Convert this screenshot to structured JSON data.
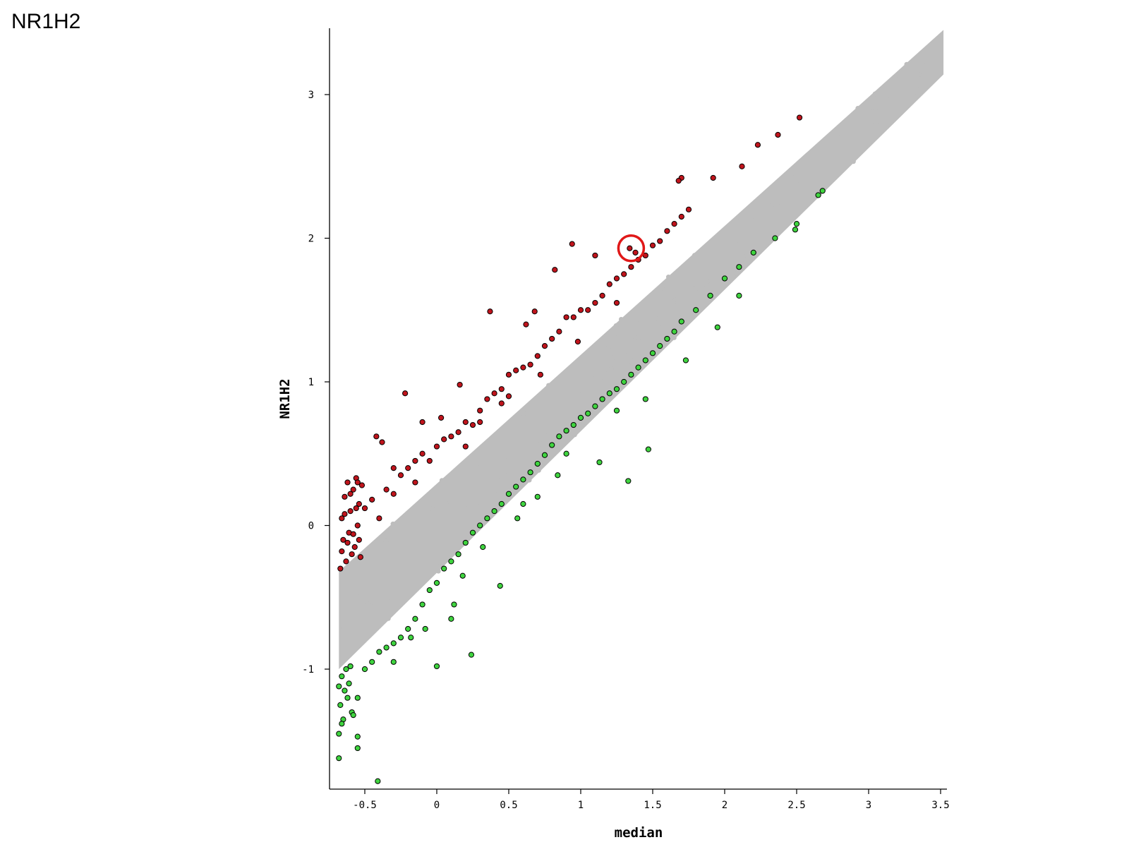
{
  "slide": {
    "title": "NR1H2"
  },
  "colors": {
    "background": "#bdbdbd",
    "up": "#c0141c",
    "down": "#3fd43f",
    "outline": "#000000",
    "highlight_ring": "#e01818"
  },
  "chart_data": {
    "type": "scatter",
    "title": "",
    "xlabel": "median",
    "ylabel": "NR1H2",
    "xlim": [
      -0.72,
      3.55
    ],
    "ylim": [
      -1.83,
      3.48
    ],
    "x_ticks": [
      -0.5,
      0,
      0.5,
      1,
      1.5,
      2,
      2.5,
      3,
      3.5
    ],
    "x_tick_labels": [
      "-0.5",
      "0",
      "0.5",
      "1",
      "1.5",
      "2",
      "2.5",
      "3",
      "3.5"
    ],
    "y_ticks": [
      -1,
      0,
      1,
      2,
      3
    ],
    "y_tick_labels": [
      "-1",
      "0",
      "1",
      "2",
      "3"
    ],
    "grid": false,
    "legend": "none",
    "background_band": {
      "color": "gray",
      "x_range": [
        -0.68,
        3.52
      ],
      "y_lower_at_xmin": -1.0,
      "y_lower_at_xmax": 3.14,
      "y_upper_at_xmin": -0.32,
      "y_upper_at_xmax": 3.45
    },
    "series": [
      {
        "color": "red",
        "points": [
          [
            -0.66,
            0.05
          ],
          [
            -0.65,
            -0.1
          ],
          [
            -0.64,
            0.2
          ],
          [
            -0.63,
            -0.25
          ],
          [
            -0.62,
            0.3
          ],
          [
            -0.61,
            -0.05
          ],
          [
            -0.6,
            0.1
          ],
          [
            -0.59,
            -0.2
          ],
          [
            -0.58,
            0.25
          ],
          [
            -0.57,
            -0.15
          ],
          [
            -0.56,
            0.33
          ],
          [
            -0.55,
            0.0
          ],
          [
            -0.54,
            0.15
          ],
          [
            -0.53,
            -0.22
          ],
          [
            -0.52,
            0.28
          ],
          [
            -0.67,
            -0.3
          ],
          [
            -0.66,
            -0.18
          ],
          [
            -0.64,
            0.08
          ],
          [
            -0.62,
            -0.12
          ],
          [
            -0.6,
            0.22
          ],
          [
            -0.58,
            -0.06
          ],
          [
            -0.56,
            0.12
          ],
          [
            -0.54,
            -0.1
          ],
          [
            -0.55,
            0.3
          ],
          [
            -0.5,
            0.12
          ],
          [
            -0.45,
            0.18
          ],
          [
            -0.4,
            0.05
          ],
          [
            -0.35,
            0.25
          ],
          [
            -0.3,
            0.22
          ],
          [
            -0.25,
            0.35
          ],
          [
            -0.2,
            0.4
          ],
          [
            -0.15,
            0.45
          ],
          [
            -0.1,
            0.5
          ],
          [
            -0.05,
            0.45
          ],
          [
            0.0,
            0.55
          ],
          [
            0.05,
            0.6
          ],
          [
            0.1,
            0.62
          ],
          [
            0.15,
            0.65
          ],
          [
            0.2,
            0.72
          ],
          [
            0.25,
            0.7
          ],
          [
            0.3,
            0.8
          ],
          [
            0.35,
            0.88
          ],
          [
            0.4,
            0.92
          ],
          [
            0.45,
            0.95
          ],
          [
            0.5,
            1.05
          ],
          [
            0.55,
            1.08
          ],
          [
            0.6,
            1.1
          ],
          [
            0.65,
            1.12
          ],
          [
            0.7,
            1.18
          ],
          [
            0.75,
            1.25
          ],
          [
            0.8,
            1.3
          ],
          [
            0.85,
            1.35
          ],
          [
            0.9,
            1.45
          ],
          [
            0.95,
            1.45
          ],
          [
            1.0,
            1.5
          ],
          [
            1.05,
            1.5
          ],
          [
            1.1,
            1.55
          ],
          [
            1.15,
            1.6
          ],
          [
            1.2,
            1.68
          ],
          [
            1.25,
            1.72
          ],
          [
            1.3,
            1.75
          ],
          [
            1.35,
            1.8
          ],
          [
            1.4,
            1.85
          ],
          [
            1.45,
            1.88
          ],
          [
            1.5,
            1.95
          ],
          [
            1.55,
            1.98
          ],
          [
            1.6,
            2.05
          ],
          [
            1.65,
            2.1
          ],
          [
            1.7,
            2.15
          ],
          [
            1.75,
            2.2
          ],
          [
            -0.42,
            0.62
          ],
          [
            -0.38,
            0.58
          ],
          [
            -0.22,
            0.92
          ],
          [
            -0.1,
            0.72
          ],
          [
            0.03,
            0.75
          ],
          [
            0.16,
            0.98
          ],
          [
            0.37,
            1.49
          ],
          [
            0.62,
            1.4
          ],
          [
            0.68,
            1.49
          ],
          [
            0.82,
            1.78
          ],
          [
            0.94,
            1.96
          ],
          [
            1.1,
            1.88
          ],
          [
            1.34,
            1.93
          ],
          [
            1.38,
            1.9
          ],
          [
            1.7,
            2.42
          ],
          [
            1.68,
            2.4
          ],
          [
            1.92,
            2.42
          ],
          [
            2.12,
            2.5
          ],
          [
            2.23,
            2.65
          ],
          [
            2.37,
            2.72
          ],
          [
            2.52,
            2.84
          ],
          [
            0.3,
            0.72
          ],
          [
            0.5,
            0.9
          ],
          [
            0.72,
            1.05
          ],
          [
            0.98,
            1.28
          ],
          [
            1.25,
            1.55
          ],
          [
            -0.3,
            0.4
          ],
          [
            -0.15,
            0.3
          ],
          [
            0.2,
            0.55
          ],
          [
            0.45,
            0.85
          ]
        ]
      },
      {
        "color": "green",
        "points": [
          [
            -0.68,
            -1.12
          ],
          [
            -0.67,
            -1.25
          ],
          [
            -0.66,
            -1.05
          ],
          [
            -0.65,
            -1.35
          ],
          [
            -0.64,
            -1.15
          ],
          [
            -0.63,
            -1.0
          ],
          [
            -0.62,
            -1.2
          ],
          [
            -0.61,
            -1.1
          ],
          [
            -0.6,
            -0.98
          ],
          [
            -0.59,
            -1.3
          ],
          [
            -0.68,
            -1.45
          ],
          [
            -0.66,
            -1.38
          ],
          [
            -0.68,
            -1.62
          ],
          [
            -0.58,
            -1.32
          ],
          [
            -0.55,
            -1.47
          ],
          [
            -0.55,
            -1.55
          ],
          [
            -0.41,
            -1.78
          ],
          [
            -0.55,
            -1.2
          ],
          [
            -0.5,
            -1.0
          ],
          [
            -0.45,
            -0.95
          ],
          [
            -0.4,
            -0.88
          ],
          [
            -0.35,
            -0.85
          ],
          [
            -0.3,
            -0.82
          ],
          [
            -0.25,
            -0.78
          ],
          [
            -0.2,
            -0.72
          ],
          [
            -0.15,
            -0.65
          ],
          [
            -0.1,
            -0.55
          ],
          [
            -0.05,
            -0.45
          ],
          [
            0.0,
            -0.4
          ],
          [
            0.05,
            -0.3
          ],
          [
            0.1,
            -0.25
          ],
          [
            0.15,
            -0.2
          ],
          [
            0.2,
            -0.12
          ],
          [
            0.25,
            -0.05
          ],
          [
            0.3,
            0.0
          ],
          [
            0.35,
            0.05
          ],
          [
            0.4,
            0.1
          ],
          [
            0.45,
            0.15
          ],
          [
            0.5,
            0.22
          ],
          [
            0.55,
            0.27
          ],
          [
            0.6,
            0.32
          ],
          [
            0.65,
            0.37
          ],
          [
            0.7,
            0.43
          ],
          [
            0.75,
            0.49
          ],
          [
            0.8,
            0.56
          ],
          [
            0.85,
            0.62
          ],
          [
            0.9,
            0.66
          ],
          [
            0.95,
            0.7
          ],
          [
            1.0,
            0.75
          ],
          [
            1.05,
            0.78
          ],
          [
            1.1,
            0.83
          ],
          [
            1.15,
            0.88
          ],
          [
            1.2,
            0.92
          ],
          [
            1.25,
            0.95
          ],
          [
            1.3,
            1.0
          ],
          [
            1.35,
            1.05
          ],
          [
            1.4,
            1.1
          ],
          [
            1.45,
            1.15
          ],
          [
            1.5,
            1.2
          ],
          [
            1.55,
            1.25
          ],
          [
            1.6,
            1.3
          ],
          [
            1.65,
            1.35
          ],
          [
            1.7,
            1.42
          ],
          [
            1.8,
            1.5
          ],
          [
            1.9,
            1.6
          ],
          [
            2.0,
            1.72
          ],
          [
            2.1,
            1.8
          ],
          [
            2.2,
            1.9
          ],
          [
            2.35,
            2.0
          ],
          [
            2.5,
            2.1
          ],
          [
            2.65,
            2.3
          ],
          [
            -0.3,
            -0.95
          ],
          [
            -0.18,
            -0.78
          ],
          [
            -0.08,
            -0.72
          ],
          [
            0.0,
            -0.98
          ],
          [
            0.1,
            -0.65
          ],
          [
            0.24,
            -0.9
          ],
          [
            0.32,
            -0.15
          ],
          [
            0.44,
            -0.42
          ],
          [
            0.56,
            0.05
          ],
          [
            0.7,
            0.2
          ],
          [
            0.84,
            0.35
          ],
          [
            1.13,
            0.44
          ],
          [
            1.33,
            0.31
          ],
          [
            1.47,
            0.53
          ],
          [
            1.45,
            0.88
          ],
          [
            1.73,
            1.15
          ],
          [
            1.95,
            1.38
          ],
          [
            2.1,
            1.6
          ],
          [
            2.49,
            2.06
          ],
          [
            2.68,
            2.33
          ],
          [
            0.12,
            -0.55
          ],
          [
            0.18,
            -0.35
          ],
          [
            0.6,
            0.15
          ],
          [
            0.9,
            0.5
          ],
          [
            1.25,
            0.8
          ]
        ]
      }
    ],
    "highlight": {
      "x": 1.35,
      "y": 1.93
    }
  }
}
